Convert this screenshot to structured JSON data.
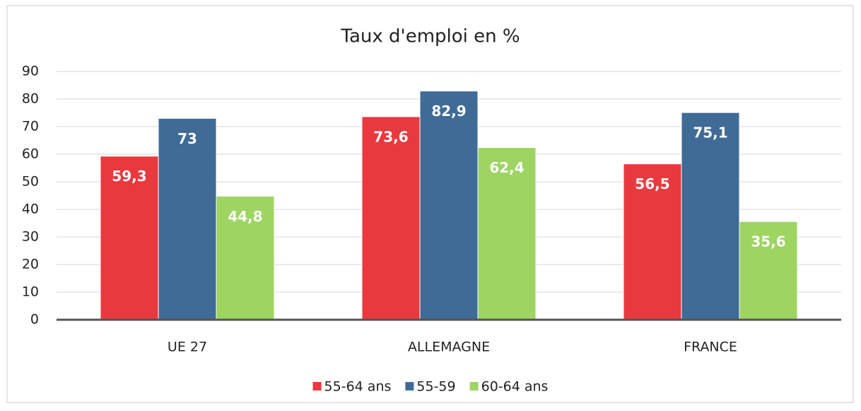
{
  "chart_data": {
    "type": "bar",
    "title": "Taux d'emploi en %",
    "categories": [
      "UE 27",
      "ALLEMAGNE",
      "FRANCE"
    ],
    "series": [
      {
        "name": "55-64 ans",
        "color": "#e8393f",
        "values": [
          59.3,
          73.6,
          56.5
        ],
        "value_labels": [
          "59,3",
          "73,6",
          "56,5"
        ]
      },
      {
        "name": "55-59",
        "color": "#3f6b96",
        "values": [
          73,
          82.9,
          75.1
        ],
        "value_labels": [
          "73",
          "82,9",
          "75,1"
        ]
      },
      {
        "name": "60-64 ans",
        "color": "#9dd462",
        "values": [
          44.8,
          62.4,
          35.6
        ],
        "value_labels": [
          "44,8",
          "62,4",
          "35,6"
        ]
      }
    ],
    "ylim": [
      0,
      90
    ],
    "yticks": [
      0,
      10,
      20,
      30,
      40,
      50,
      60,
      70,
      80,
      90
    ],
    "grid": true,
    "legend": "bottom"
  }
}
